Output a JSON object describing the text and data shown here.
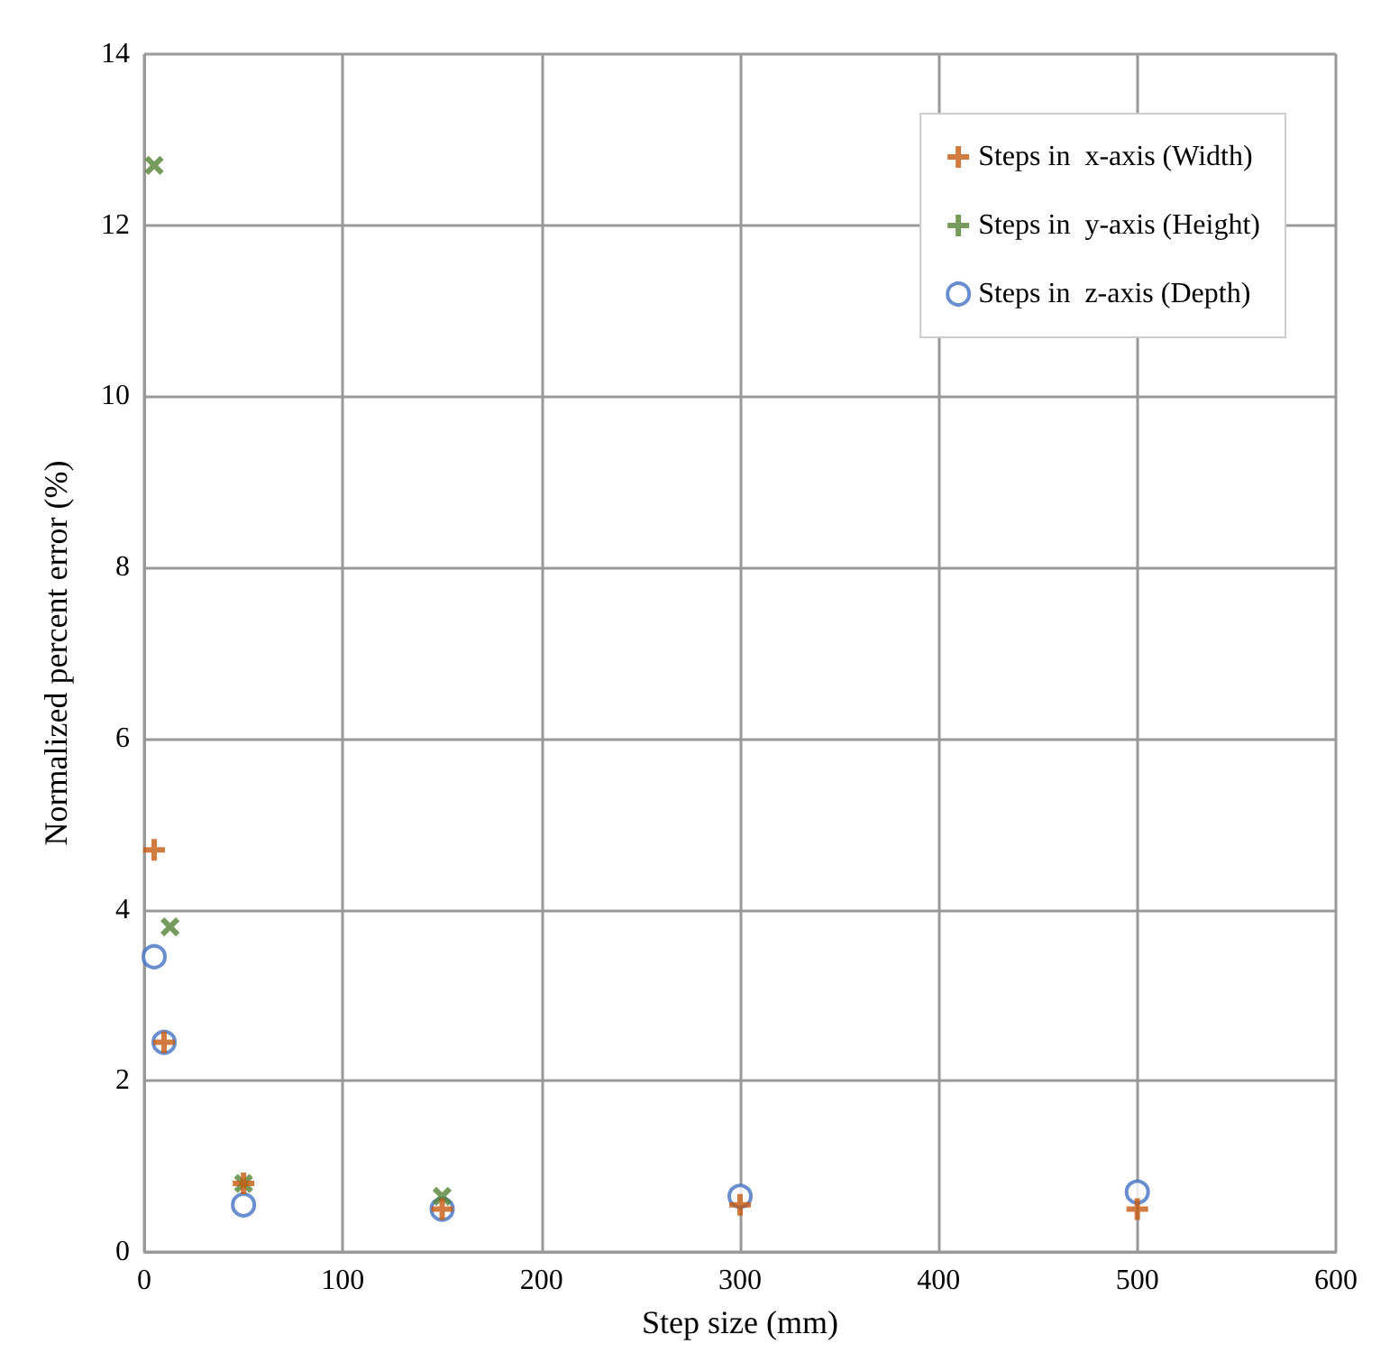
{
  "chart_data": {
    "type": "scatter",
    "xlabel": "Step size (mm)",
    "ylabel": "Normalized percent error (%)",
    "xlim": [
      0,
      600
    ],
    "xticks": [
      0,
      100,
      200,
      300,
      400,
      500,
      600
    ],
    "ylim": [
      0,
      14
    ],
    "yticks": [
      0,
      2,
      4,
      6,
      8,
      10,
      12,
      14
    ],
    "grid": true,
    "legend": "top right",
    "series": [
      {
        "name": "Steps in  x-axis (Width)",
        "color": "#c55a11",
        "marker": "cross",
        "x": [
          5,
          10,
          50,
          150,
          300,
          500
        ],
        "values": [
          4.7,
          2.45,
          0.8,
          0.5,
          0.55,
          0.5
        ]
      },
      {
        "name": "Steps in  y-axis (Height)",
        "color": "#548235",
        "marker": "x",
        "x": [
          5,
          13,
          50,
          150
        ],
        "values": [
          12.7,
          3.8,
          0.8,
          0.65
        ]
      },
      {
        "name": "Steps in  z-axis (Depth)",
        "color": "#4472c4",
        "marker": "circle",
        "x": [
          5,
          10,
          50,
          150,
          300,
          500
        ],
        "values": [
          3.45,
          2.45,
          0.55,
          0.5,
          0.65,
          0.7
        ]
      }
    ]
  }
}
